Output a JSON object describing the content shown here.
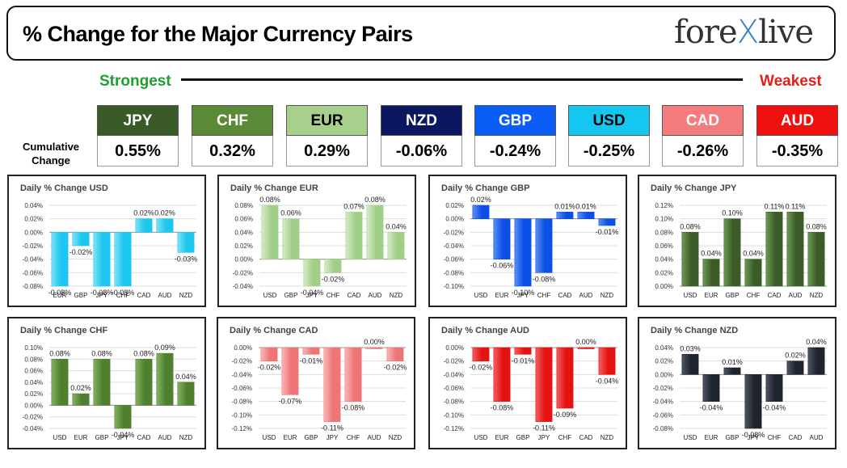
{
  "header": {
    "title": "% Change for the Major Currency Pairs",
    "logo_part1": "fore",
    "logo_x": "X",
    "logo_part2": "live"
  },
  "range": {
    "strongest": "Strongest",
    "weakest": "Weakest"
  },
  "cumulative": {
    "label_line1": "Cumulative",
    "label_line2": "Change",
    "items": [
      {
        "code": "JPY",
        "value": "0.55%",
        "bg": "#3a5a28",
        "fg": "#ffffff"
      },
      {
        "code": "CHF",
        "value": "0.32%",
        "bg": "#5b8a36",
        "fg": "#ffffff"
      },
      {
        "code": "EUR",
        "value": "0.29%",
        "bg": "#a8d08d",
        "fg": "#000000"
      },
      {
        "code": "NZD",
        "value": "-0.06%",
        "bg": "#0b1860",
        "fg": "#ffffff"
      },
      {
        "code": "GBP",
        "value": "-0.24%",
        "bg": "#0b5ef5",
        "fg": "#ffffff"
      },
      {
        "code": "USD",
        "value": "-0.25%",
        "bg": "#14c7f0",
        "fg": "#000000"
      },
      {
        "code": "CAD",
        "value": "-0.26%",
        "bg": "#f57c7c",
        "fg": "#ffffff"
      },
      {
        "code": "AUD",
        "value": "-0.35%",
        "bg": "#f00f0f",
        "fg": "#ffffff"
      }
    ]
  },
  "chart_data": [
    {
      "type": "bar",
      "title": "Daily % Change USD",
      "categories": [
        "EUR",
        "GBP",
        "JPY",
        "CHF",
        "CAD",
        "AUD",
        "NZD"
      ],
      "values": [
        -0.08,
        -0.02,
        -0.08,
        -0.08,
        0.02,
        0.02,
        -0.03
      ],
      "labels": [
        "-0.08%",
        "-0.02%",
        "-0.08%",
        "-0.08%",
        "0.02%",
        "0.02%",
        "-0.03%"
      ],
      "yticks": [
        "0.04%",
        "0.02%",
        "0.00%",
        "-0.02%",
        "-0.04%",
        "-0.06%",
        "-0.08%"
      ],
      "ylim": [
        -0.08,
        0.04
      ],
      "color": "#1cc6ee",
      "gradient": "#7fe3f8"
    },
    {
      "type": "bar",
      "title": "Daily % Change EUR",
      "categories": [
        "USD",
        "GBP",
        "JPY",
        "CHF",
        "CAD",
        "AUD",
        "NZD"
      ],
      "values": [
        0.08,
        0.06,
        -0.04,
        -0.02,
        0.07,
        0.08,
        0.04
      ],
      "labels": [
        "0.08%",
        "0.06%",
        "-0.04%",
        "-0.02%",
        "0.07%",
        "0.08%",
        "0.04%"
      ],
      "yticks": [
        "0.08%",
        "0.06%",
        "0.04%",
        "0.02%",
        "0.00%",
        "-0.02%",
        "-0.04%"
      ],
      "ylim": [
        -0.04,
        0.08
      ],
      "color": "#a2cf88",
      "gradient": "#d6ecc8"
    },
    {
      "type": "bar",
      "title": "Daily % Change GBP",
      "categories": [
        "USD",
        "EUR",
        "JPY",
        "CHF",
        "CAD",
        "AUD",
        "NZD"
      ],
      "values": [
        0.02,
        -0.06,
        -0.1,
        -0.08,
        0.01,
        0.01,
        -0.01
      ],
      "labels": [
        "0.02%",
        "-0.06%",
        "-0.10%",
        "-0.08%",
        "0.01%",
        "0.01%",
        "-0.01%"
      ],
      "yticks": [
        "0.02%",
        "0.00%",
        "-0.02%",
        "-0.04%",
        "-0.06%",
        "-0.08%",
        "-0.10%"
      ],
      "ylim": [
        -0.1,
        0.02
      ],
      "color": "#0b4fe8",
      "gradient": "#5d8ff5"
    },
    {
      "type": "bar",
      "title": "Daily % Change JPY",
      "categories": [
        "USD",
        "EUR",
        "GBP",
        "CHF",
        "CAD",
        "AUD",
        "NZD"
      ],
      "values": [
        0.08,
        0.04,
        0.1,
        0.04,
        0.11,
        0.11,
        0.08
      ],
      "labels": [
        "0.08%",
        "0.04%",
        "0.10%",
        "0.04%",
        "0.11%",
        "0.11%",
        "0.08%"
      ],
      "yticks": [
        "0.12%",
        "0.10%",
        "0.08%",
        "0.06%",
        "0.04%",
        "0.02%",
        "0.00%"
      ],
      "ylim": [
        0,
        0.12
      ],
      "color": "#3b5c29",
      "gradient": "#6c9a52"
    },
    {
      "type": "bar",
      "title": "Daily % Change CHF",
      "categories": [
        "USD",
        "EUR",
        "GBP",
        "JPY",
        "CAD",
        "AUD",
        "NZD"
      ],
      "values": [
        0.08,
        0.02,
        0.08,
        -0.04,
        0.08,
        0.09,
        0.04
      ],
      "labels": [
        "0.08%",
        "0.02%",
        "0.08%",
        "-0.04%",
        "0.08%",
        "0.09%",
        "0.04%"
      ],
      "yticks": [
        "0.10%",
        "0.08%",
        "0.06%",
        "0.04%",
        "0.02%",
        "0.00%",
        "-0.02%",
        "-0.04%"
      ],
      "ylim": [
        -0.04,
        0.1
      ],
      "color": "#4f7f2f",
      "gradient": "#82b35f"
    },
    {
      "type": "bar",
      "title": "Daily % Change CAD",
      "categories": [
        "USD",
        "EUR",
        "GBP",
        "JPY",
        "CHF",
        "AUD",
        "NZD"
      ],
      "values": [
        -0.02,
        -0.07,
        -0.01,
        -0.11,
        -0.08,
        0.0,
        -0.02
      ],
      "labels": [
        "-0.02%",
        "-0.07%",
        "-0.01%",
        "-0.11%",
        "-0.08%",
        "0.00%",
        "-0.02%"
      ],
      "yticks": [
        "0.00%",
        "-0.02%",
        "-0.04%",
        "-0.06%",
        "-0.08%",
        "-0.10%",
        "-0.12%"
      ],
      "ylim": [
        -0.12,
        0.0
      ],
      "color": "#ef7474",
      "gradient": "#f8b8b8"
    },
    {
      "type": "bar",
      "title": "Daily % Change AUD",
      "categories": [
        "USD",
        "EUR",
        "GBP",
        "JPY",
        "CHF",
        "CAD",
        "NZD"
      ],
      "values": [
        -0.02,
        -0.08,
        -0.01,
        -0.11,
        -0.09,
        0.0,
        -0.04
      ],
      "labels": [
        "-0.02%",
        "-0.08%",
        "-0.01%",
        "-0.11%",
        "-0.09%",
        "0.00%",
        "-0.04%"
      ],
      "yticks": [
        "0.00%",
        "-0.02%",
        "-0.04%",
        "-0.06%",
        "-0.08%",
        "-0.10%",
        "-0.12%"
      ],
      "ylim": [
        -0.12,
        0.0
      ],
      "color": "#e51212",
      "gradient": "#f46060"
    },
    {
      "type": "bar",
      "title": "Daily % Change NZD",
      "categories": [
        "USD",
        "EUR",
        "GBP",
        "JPY",
        "CHF",
        "CAD",
        "AUD"
      ],
      "values": [
        0.03,
        -0.04,
        0.01,
        -0.08,
        -0.04,
        0.02,
        0.04
      ],
      "labels": [
        "0.03%",
        "-0.04%",
        "0.01%",
        "-0.08%",
        "-0.04%",
        "0.02%",
        "0.04%"
      ],
      "yticks": [
        "0.04%",
        "0.02%",
        "0.00%",
        "-0.02%",
        "-0.04%",
        "-0.06%",
        "-0.08%"
      ],
      "ylim": [
        -0.08,
        0.04
      ],
      "color": "#1e232d",
      "gradient": "#4c5564"
    }
  ]
}
